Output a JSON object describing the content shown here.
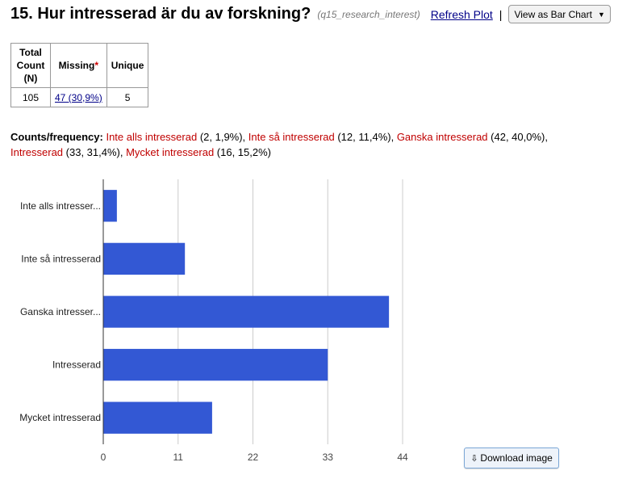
{
  "header": {
    "title": "15. Hur intresserad är du av forskning?",
    "variable": "(q15_research_interest)",
    "refresh_label": "Refresh Plot",
    "separator": "|",
    "view_select_value": "View as Bar Chart"
  },
  "stats": {
    "headers": [
      "Total Count (N)",
      "Missing",
      "Unique"
    ],
    "total_count": "105",
    "missing": "47 (30,9%)",
    "unique": "5"
  },
  "frequency": {
    "label": "Counts/frequency:",
    "items": [
      {
        "name": "Inte alls intresserad",
        "info": " (2, 1,9%), "
      },
      {
        "name": "Inte så intresserad",
        "info": " (12, 11,4%), "
      },
      {
        "name": "Ganska intresserad",
        "info": " (42, 40,0%), "
      },
      {
        "name": "Intresserad",
        "info": " (33, 31,4%), "
      },
      {
        "name": "Mycket intresserad",
        "info": " (16, 15,2%)"
      }
    ]
  },
  "chart_data": {
    "type": "bar",
    "orientation": "horizontal",
    "categories": [
      "Inte alls intresser...",
      "Inte så intresserad",
      "Ganska intresser...",
      "Intresserad",
      "Mycket intresserad"
    ],
    "values": [
      2,
      12,
      42,
      33,
      16
    ],
    "xticks": [
      0,
      11,
      22,
      33,
      44
    ],
    "xlim": [
      0,
      44
    ],
    "grid": true,
    "bar_color": "#3358d4"
  },
  "download_label": "Download image",
  "colors": {
    "category_text": "#c00000",
    "link": "#000088",
    "bar": "#3358d4"
  }
}
